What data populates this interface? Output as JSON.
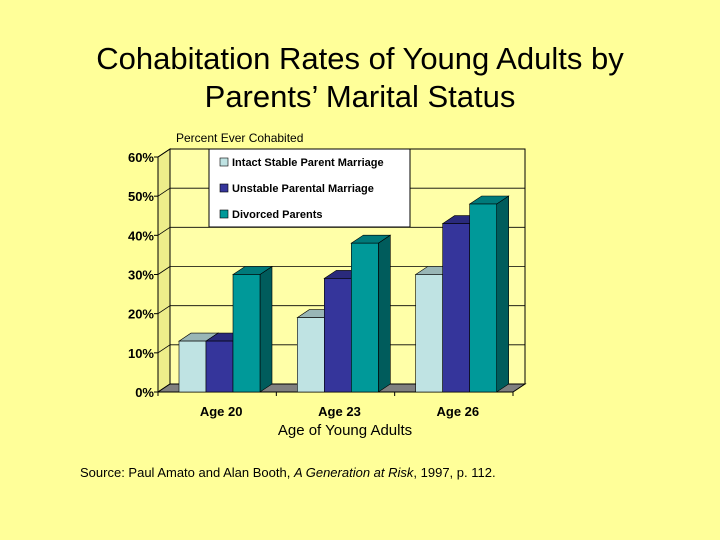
{
  "title_line1": "Cohabitation Rates of Young Adults by",
  "title_line2": "Parents’ Marital Status",
  "chart_data": {
    "type": "bar",
    "ylabel": "Percent Ever Cohabited",
    "xlabel": "Age of Young Adults",
    "categories": [
      "Age 20",
      "Age 23",
      "Age 26"
    ],
    "series": [
      {
        "name": "Intact Stable Parent Marriage",
        "values": [
          0.13,
          0.19,
          0.3
        ],
        "color": "#BFE3E3"
      },
      {
        "name": "Unstable Parental Marriage",
        "values": [
          0.13,
          0.29,
          0.43
        ],
        "color": "#35359B"
      },
      {
        "name": "Divorced Parents",
        "values": [
          0.3,
          0.38,
          0.48
        ],
        "color": "#009999"
      }
    ],
    "y_ticks": [
      "0%",
      "10%",
      "20%",
      "30%",
      "40%",
      "50%",
      "60%"
    ],
    "ylim": [
      0,
      0.6
    ],
    "grid": true,
    "legend_position": "top-center",
    "style": "3d-clustered-bar"
  },
  "source": {
    "prefix": "Source: Paul Amato and Alan Booth, ",
    "book": "A Generation at Risk",
    "suffix": ", 1997, p. 112."
  }
}
